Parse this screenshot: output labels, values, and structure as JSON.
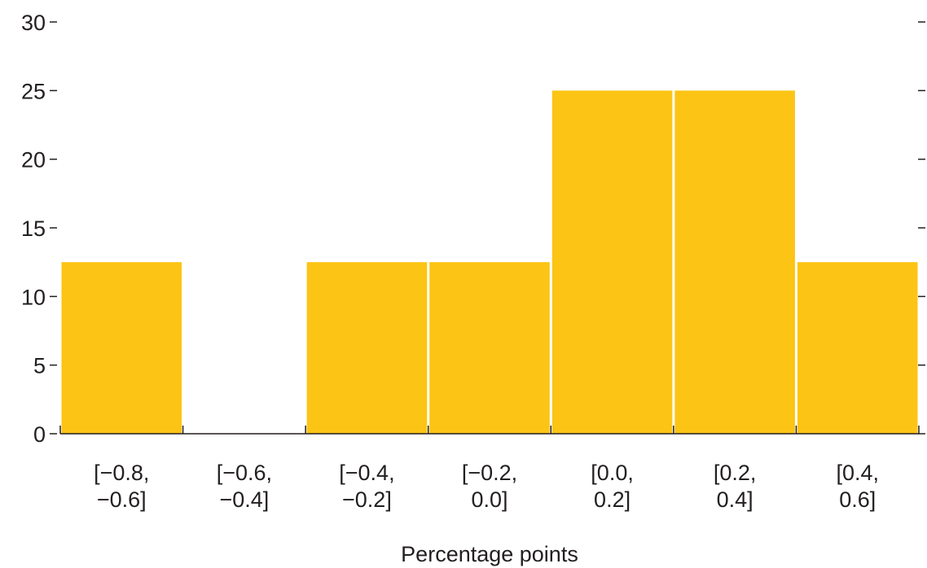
{
  "chart_data": {
    "type": "bar",
    "title": "",
    "xlabel": "Percentage points",
    "ylabel": "",
    "ylim": [
      0,
      30
    ],
    "yticks": [
      0,
      5,
      10,
      15,
      20,
      25,
      30
    ],
    "grid": false,
    "legend": "none",
    "bar_color": "#fcc414",
    "categories": [
      [
        "[−0.8,",
        "−0.6]"
      ],
      [
        "[−0.6,",
        "−0.4]"
      ],
      [
        "[−0.4,",
        "−0.2]"
      ],
      [
        "[−0.2,",
        "0.0]"
      ],
      [
        "[0.0,",
        "0.2]"
      ],
      [
        "[0.2,",
        "0.4]"
      ],
      [
        "[0.4,",
        "0.6]"
      ]
    ],
    "values": [
      12.5,
      0,
      12.5,
      12.5,
      25,
      25,
      12.5
    ]
  }
}
